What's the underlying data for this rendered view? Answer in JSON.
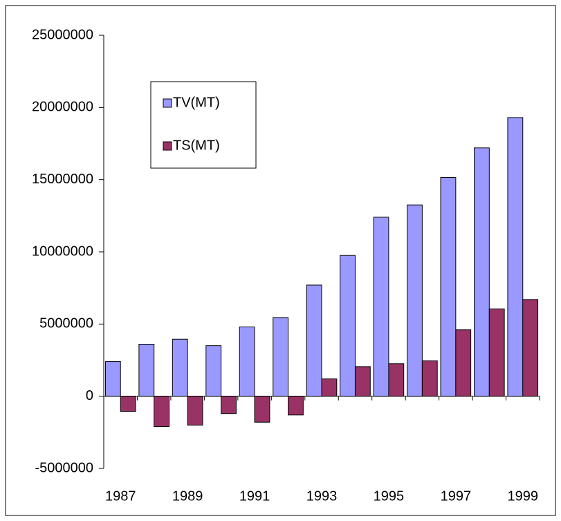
{
  "chart_data": {
    "type": "bar",
    "categories": [
      "1987",
      null,
      "1989",
      null,
      "1991",
      null,
      "1993",
      null,
      "1995",
      null,
      "1997",
      null,
      "1999"
    ],
    "series": [
      {
        "name": "TV(MT)",
        "color": "#9999ff",
        "values": [
          2400000,
          3600000,
          3950000,
          3500000,
          4800000,
          5450000,
          7700000,
          9750000,
          12400000,
          13250000,
          15150000,
          17200000,
          19300000
        ]
      },
      {
        "name": "TS(MT)",
        "color": "#993366",
        "values": [
          -1050000,
          -2100000,
          -2000000,
          -1200000,
          -1800000,
          -1300000,
          1200000,
          2050000,
          2250000,
          2450000,
          4600000,
          6050000,
          6700000
        ]
      }
    ],
    "ylim": [
      -5000000,
      25000000
    ],
    "yticks": [
      -5000000,
      0,
      5000000,
      10000000,
      15000000,
      20000000,
      25000000
    ]
  }
}
